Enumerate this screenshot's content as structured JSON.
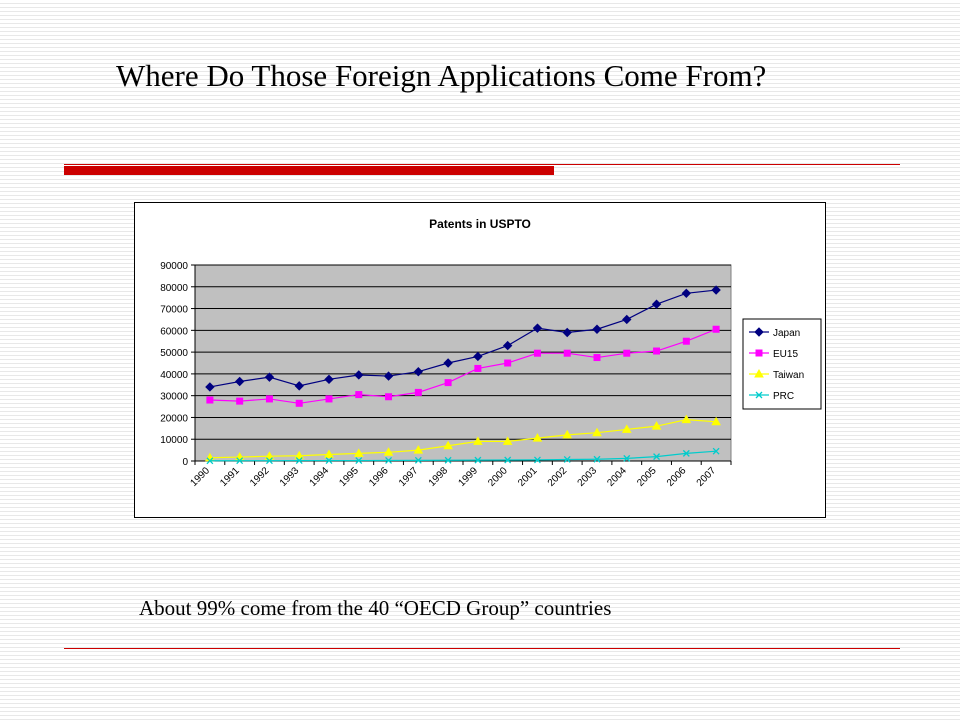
{
  "slide": {
    "title": "Where Do Those Foreign Applications Come From?",
    "caption": "About 99% come from the 40 “OECD Group” countries",
    "accent_color": "#cc0000"
  },
  "chart_data": {
    "type": "line",
    "title": "Patents in USPTO",
    "xlabel": "",
    "ylabel": "",
    "x": [
      "1990",
      "1991",
      "1992",
      "1993",
      "1994",
      "1995",
      "1996",
      "1997",
      "1998",
      "1999",
      "2000",
      "2001",
      "2002",
      "2003",
      "2004",
      "2005",
      "2006",
      "2007"
    ],
    "ylim": [
      0,
      90000
    ],
    "yticks": [
      0,
      10000,
      20000,
      30000,
      40000,
      50000,
      60000,
      70000,
      80000,
      90000
    ],
    "grid": true,
    "legend_position": "right",
    "plot_background": "#c0c0c0",
    "series": [
      {
        "name": "Japan",
        "color": "#000080",
        "marker": "diamond",
        "values": [
          34000,
          36500,
          38500,
          34500,
          37500,
          39500,
          39000,
          41000,
          45000,
          48000,
          53000,
          61000,
          59000,
          60500,
          65000,
          72000,
          77000,
          78500
        ]
      },
      {
        "name": "EU15",
        "color": "#ff00ff",
        "marker": "square",
        "values": [
          28000,
          27500,
          28500,
          26500,
          28500,
          30500,
          29500,
          31500,
          36000,
          42500,
          45000,
          49500,
          49500,
          47500,
          49500,
          50500,
          55000,
          60500
        ]
      },
      {
        "name": "Taiwan",
        "color": "#ffff00",
        "marker": "triangle",
        "values": [
          1500,
          1800,
          2200,
          2400,
          3000,
          3500,
          4000,
          5000,
          7000,
          9000,
          9000,
          10500,
          12000,
          13000,
          14500,
          16000,
          19000,
          18000
        ]
      },
      {
        "name": "PRC",
        "color": "#00cccc",
        "marker": "x",
        "values": [
          100,
          150,
          150,
          200,
          200,
          200,
          250,
          300,
          350,
          400,
          450,
          500,
          700,
          800,
          1200,
          2000,
          3500,
          4500
        ]
      }
    ]
  }
}
